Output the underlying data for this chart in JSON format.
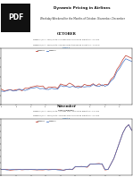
{
  "main_title": "Dynamic Pricing in Airlines",
  "subtitle": "Weekday/Weekend for the Months of October, November, December",
  "background_color": "#ffffff",
  "weekday_color": "#4472c4",
  "weekend_color": "#c0392b",
  "pdf_box_color": "#1a1a1a",
  "sections": [
    {
      "title": "OCTOBER",
      "note1": "Weekday (10 A. 2018) Delta: Louisiana Flight No 823-65 Departure : 1:11 PM",
      "note2": "Weekend (10 A. 2018) Delta: Louisiana Flight No 823-65 Departure : 1:11 PM",
      "link": "Chart 1",
      "xlabel": "Time (Calendar)",
      "ylabel": "Price (In Dollar)",
      "ylim": [
        0,
        1200000
      ],
      "yticks": [
        0,
        200000,
        400000,
        600000,
        800000,
        1000000,
        1200000
      ],
      "n_points": 45,
      "weekday_base": 280000,
      "weekend_base": 300000,
      "weekday_seed": 42,
      "weekend_seed": 7
    },
    {
      "title": "November",
      "note1": "Weekday (10 A. 2018) Delta: American Flight No 823-65 Departure : 1:11 PM",
      "note2": "Weekend (10 A. 2018) Delta: American Flight No 823-65 Departure : 1:11 PM",
      "link": "Chart 2",
      "xlabel": "Time (Calendar)",
      "ylabel": "Price (In Dollar)",
      "ylim": [
        0,
        1800000
      ],
      "yticks": [
        0,
        200000,
        400000,
        600000,
        800000,
        1000000,
        1200000,
        1400000,
        1600000,
        1800000
      ],
      "n_points": 45,
      "weekday_base": 180000,
      "weekend_base": 180000,
      "weekday_seed": 10,
      "weekend_seed": 20
    }
  ]
}
